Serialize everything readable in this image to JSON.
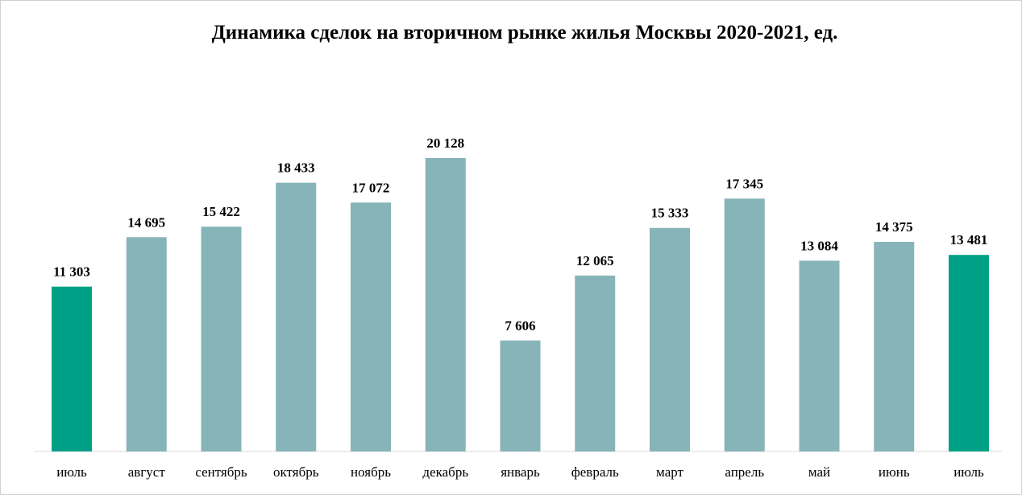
{
  "chart_data": {
    "type": "bar",
    "title": "Динамика сделок на вторичном рынке жилья Москвы 2020-2021, ед.",
    "categories": [
      "июль",
      "август",
      "сентябрь",
      "октябрь",
      "ноябрь",
      "декабрь",
      "январь",
      "февраль",
      "март",
      "апрель",
      "май",
      "июнь",
      "июль"
    ],
    "values": [
      11303,
      14695,
      15422,
      18433,
      17072,
      20128,
      7606,
      12065,
      15333,
      17345,
      13084,
      14375,
      13481
    ],
    "value_labels": [
      "11 303",
      "14 695",
      "15 422",
      "18 433",
      "17 072",
      "20 128",
      "7 606",
      "12 065",
      "15 333",
      "17 345",
      "13 084",
      "14 375",
      "13 481"
    ],
    "highlighted": [
      0,
      12
    ],
    "ylim": [
      0,
      20128
    ],
    "grid": false,
    "legend": "none",
    "colors": {
      "bar": "#86b4b9",
      "highlight": "#00a086",
      "axis": "#d9d9d9",
      "text": "#000000"
    }
  }
}
